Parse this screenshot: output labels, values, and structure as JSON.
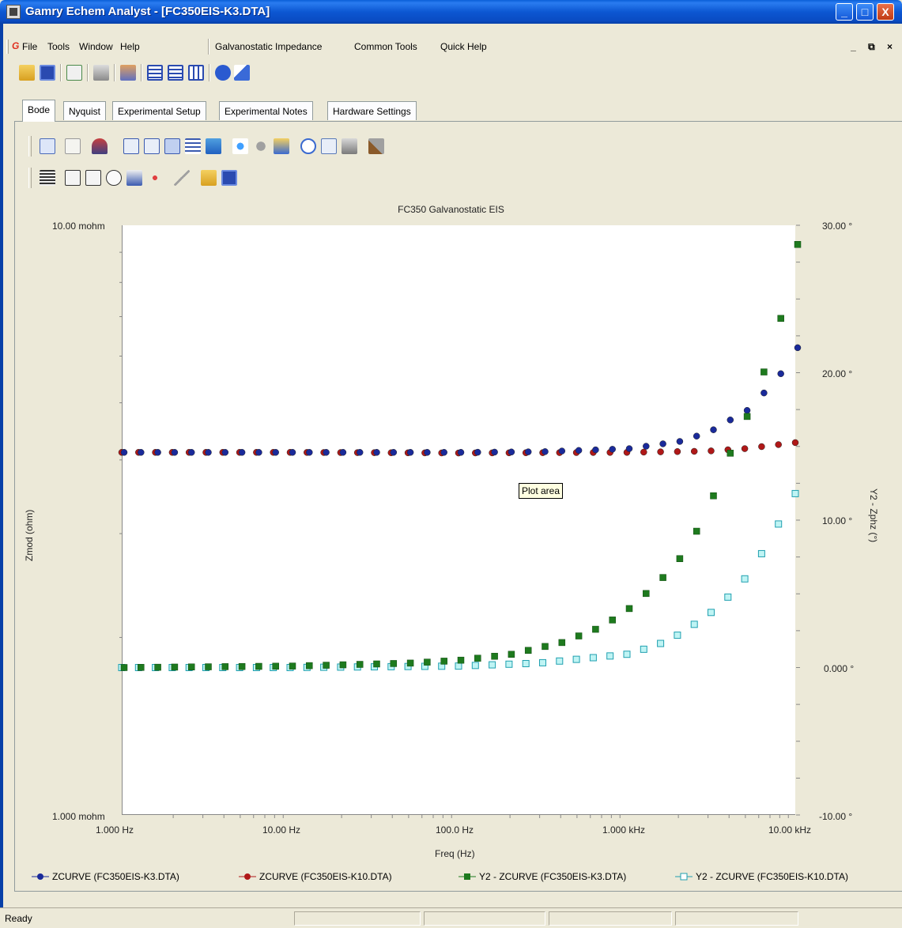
{
  "window": {
    "title": "Gamry Echem Analyst - [FC350EIS-K3.DTA]",
    "minimize": "_",
    "maximize": "□",
    "close": "X"
  },
  "menu": {
    "items": [
      "File",
      "Tools",
      "Window",
      "Help",
      "Galvanostatic Impedance",
      "Common Tools",
      "Quick Help"
    ],
    "mdi_controls": "_ ⧉ ×"
  },
  "tabs": [
    "Bode",
    "Nyquist",
    "Experimental Setup",
    "Experimental Notes",
    "Hardware Settings"
  ],
  "active_tab": "Bode",
  "tooltip": "Plot area",
  "status": {
    "text": "Ready"
  },
  "colors": {
    "zcurve_k3": "#1a2a9a",
    "zcurve_k10": "#b01818",
    "y2_k3": "#1e7a1e",
    "y2_k10": "#40e0e0"
  },
  "chart_data": {
    "type": "scatter",
    "title": "FC350 Galvanostatic EIS",
    "xlabel": "Freq (Hz)",
    "ylabel": "Zmod (ohm)",
    "y2label": "Y2 - Zphz (°)",
    "x_scale": "log",
    "y_scale": "log",
    "xlim": [
      1,
      10000
    ],
    "ylim": [
      0.001,
      0.01
    ],
    "y2lim": [
      -10,
      30
    ],
    "x_ticks": [
      "1.000 Hz",
      "10.00 Hz",
      "100.0 Hz",
      "1.000 kHz",
      "10.00 kHz"
    ],
    "y_ticks": [
      "10.00 mohm",
      "1.000 mohm"
    ],
    "y2_ticks": [
      "30.00 °",
      "20.00 °",
      "10.00 °",
      "0.000 °",
      "-10.00 °"
    ],
    "legend": [
      "ZCURVE (FC350EIS-K3.DTA)",
      "ZCURVE (FC350EIS-K10.DTA)",
      "Y2 - ZCURVE (FC350EIS-K3.DTA)",
      "Y2 - ZCURVE (FC350EIS-K10.DTA)"
    ],
    "series": [
      {
        "name": "ZCURVE (FC350EIS-K3.DTA)",
        "axis": "y",
        "marker": "circle",
        "x": [
          1,
          10,
          100,
          300,
          1000,
          2000,
          3000,
          5000,
          7000,
          9000,
          10000
        ],
        "y": [
          0.00412,
          0.00412,
          0.00412,
          0.00413,
          0.00418,
          0.0043,
          0.00446,
          0.00485,
          0.00535,
          0.00585,
          0.0062
        ]
      },
      {
        "name": "ZCURVE (FC350EIS-K10.DTA)",
        "axis": "y",
        "marker": "circle",
        "x": [
          1,
          10,
          100,
          1000,
          3000,
          5000,
          10000
        ],
        "y": [
          0.00412,
          0.00412,
          0.00411,
          0.00412,
          0.00414,
          0.00418,
          0.00428
        ]
      },
      {
        "name": "Y2 - ZCURVE (FC350EIS-K3.DTA)",
        "axis": "y2",
        "marker": "square",
        "x": [
          1,
          10,
          50,
          100,
          200,
          400,
          700,
          1000,
          1500,
          2000,
          2500,
          3000,
          3500,
          4000,
          5000,
          6000,
          7000,
          8000,
          9000,
          10000
        ],
        "y": [
          0.0,
          0.1,
          0.3,
          0.5,
          0.9,
          1.7,
          2.8,
          4.0,
          5.8,
          7.4,
          9.2,
          11.0,
          12.9,
          14.6,
          17.0,
          19.3,
          21.6,
          23.8,
          25.9,
          28.7
        ]
      },
      {
        "name": "Y2 - ZCURVE (FC350EIS-K10.DTA)",
        "axis": "y2",
        "marker": "square-open",
        "x": [
          1,
          10,
          100,
          300,
          1000,
          1500,
          2000,
          3000,
          4000,
          5000,
          6000,
          7000,
          8000,
          9000,
          10000
        ],
        "y": [
          0.0,
          0.0,
          0.1,
          0.3,
          0.9,
          1.5,
          2.2,
          3.5,
          4.8,
          6.0,
          7.3,
          8.6,
          9.8,
          10.9,
          11.8
        ]
      }
    ]
  }
}
